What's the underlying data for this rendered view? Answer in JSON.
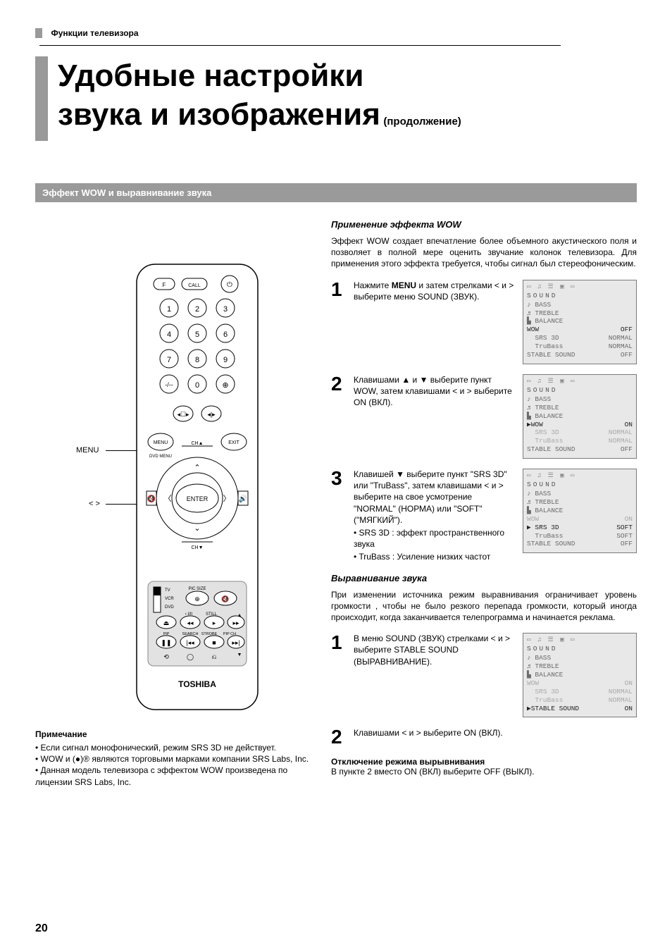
{
  "header": {
    "section_label": "Функции телевизора",
    "title_line1": "Удобные настройки",
    "title_line2": "звука и изображения",
    "title_suffix": "(продолжение)"
  },
  "band": "Эффект WOW и выравнивание звука",
  "wow": {
    "heading": "Применение эффекта WOW",
    "intro": "Эффект WOW создает впечатление более объемного акустического поля и позволяет в полной мере оценить звучание колонок телевизора. Для применения этого эффекта требуется, чтобы сигнал был стереофоническим.",
    "steps": [
      {
        "n": "1",
        "text": "Нажмите <b>MENU</b> и затем стрелками < и > выберите меню SOUND (ЗВУК).",
        "menu": {
          "rows": [
            {
              "l": "♪ BASS",
              "r": ""
            },
            {
              "l": "♬ TREBLE",
              "r": ""
            },
            {
              "l": "▙ BALANCE",
              "r": ""
            },
            {
              "l": "WOW",
              "r": "OFF",
              "active": true
            },
            {
              "l": "  SRS 3D",
              "r": "NORMAL"
            },
            {
              "l": "  TruBass",
              "r": "NORMAL"
            },
            {
              "l": "STABLE SOUND",
              "r": "OFF"
            }
          ]
        }
      },
      {
        "n": "2",
        "text": "Клавишами ▲ и ▼ выберите пункт WOW, затем клавишами < и > выберите ON (ВКЛ).",
        "menu": {
          "rows": [
            {
              "l": "♪ BASS",
              "r": ""
            },
            {
              "l": "♬ TREBLE",
              "r": ""
            },
            {
              "l": "▙ BALANCE",
              "r": ""
            },
            {
              "l": "▶WOW",
              "r": "ON",
              "active": true
            },
            {
              "l": "  SRS 3D",
              "r": "NORMAL",
              "dim": true
            },
            {
              "l": "  TruBass",
              "r": "NORMAL",
              "dim": true
            },
            {
              "l": "STABLE SOUND",
              "r": "OFF"
            }
          ]
        }
      },
      {
        "n": "3",
        "text": "Клавишей ▼ выберите пункт \"SRS 3D\" или \"TruBass\", затем клавишами < и > выберите на свое усмотрение \"NORMAL\" (НОРМА) или \"SOFT\" (\"МЯГКИЙ\").",
        "bullets": [
          "SRS 3D  : эффект пространственного звука",
          "TruBass : Усиление низких частот"
        ],
        "menu": {
          "rows": [
            {
              "l": "♪ BASS",
              "r": ""
            },
            {
              "l": "♬ TREBLE",
              "r": ""
            },
            {
              "l": "▙ BALANCE",
              "r": ""
            },
            {
              "l": "WOW",
              "r": "ON",
              "dim": true
            },
            {
              "l": "▶ SRS 3D",
              "r": "SOFT",
              "active": true
            },
            {
              "l": "  TruBass",
              "r": "SOFT"
            },
            {
              "l": "STABLE SOUND",
              "r": "OFF"
            }
          ]
        }
      }
    ]
  },
  "level": {
    "heading": "Выравнивание звука",
    "intro": "При изменении источника режим выравнивания ограничивает уровень громкости , чтобы не было резкого перепада громкости, который иногда происходит, когда заканчивается телепрограмма и начинается реклама.",
    "step1": {
      "n": "1",
      "text": "В меню SOUND (ЗВУК) стрелками < и > выберите STABLE SOUND (ВЫРАВНИВАНИЕ).",
      "menu": {
        "rows": [
          {
            "l": "♪ BASS",
            "r": ""
          },
          {
            "l": "♬ TREBLE",
            "r": ""
          },
          {
            "l": "▙ BALANCE",
            "r": ""
          },
          {
            "l": "WOW",
            "r": "ON",
            "dim": true
          },
          {
            "l": "  SRS 3D",
            "r": "NORMAL",
            "dim": true
          },
          {
            "l": "  TruBass",
            "r": "NORMAL",
            "dim": true
          },
          {
            "l": "▶STABLE SOUND",
            "r": "ON",
            "active": true
          }
        ]
      }
    },
    "step2": {
      "n": "2",
      "text": "Клавишами < и > выберите ON (ВКЛ)."
    },
    "cancel_heading": "Отключение режима вырывнивания",
    "cancel_text": "В пункте 2 вместо ON (ВКЛ) выберите OFF (ВЫКЛ)."
  },
  "notes": {
    "heading": "Примечание",
    "items": [
      "Если сигнал монофонический, режим SRS 3D не действует.",
      "WOW и (●)® являются торговыми марками компании SRS Labs, Inc.",
      "Данная модель телевизора с эффектом WOW произведена по лицензии SRS Labs, Inc."
    ]
  },
  "callouts": {
    "menu": "MENU",
    "arrows": "< >"
  },
  "remote_brand": "TOSHIBA",
  "page_number": "20",
  "menu_header": "SOUND",
  "menu_tabs": "▭ ♫ ☰ ▣ ▭"
}
